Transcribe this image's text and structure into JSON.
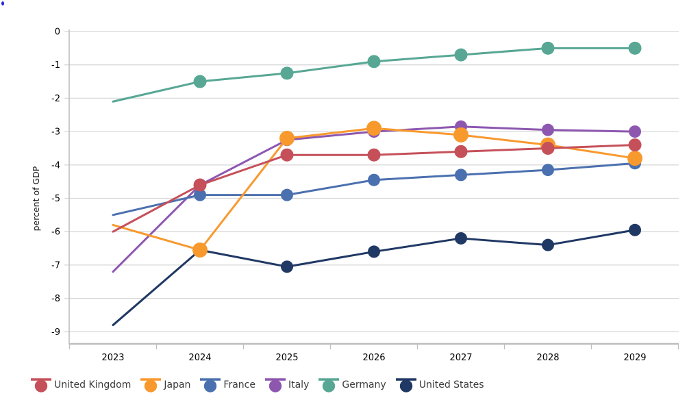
{
  "page": {
    "title": "",
    "artifact": {
      "name": "stray-blue-dot",
      "color": "#2222dd"
    }
  },
  "chart_data": {
    "type": "line",
    "title": "",
    "xlabel": "",
    "ylabel": "percent of GDP",
    "x_categories": [
      "2023",
      "2024",
      "2025",
      "2026",
      "2027",
      "2028",
      "2029"
    ],
    "y_ticks": [
      0,
      -1,
      -2,
      -3,
      -4,
      -5,
      -6,
      -7,
      -8,
      -9
    ],
    "ylim": [
      -9.4,
      0
    ],
    "grid": true,
    "legend_position": "bottom",
    "markers_on_first_point": false,
    "series": [
      {
        "name": "United Kingdom",
        "color": "#C5505A",
        "marker_radius": 9.5,
        "values": [
          -6.0,
          -4.6,
          -3.7,
          -3.7,
          -3.6,
          -3.5,
          -3.4
        ]
      },
      {
        "name": "Japan",
        "color": "#F8992E",
        "marker_radius": 11,
        "values": [
          -5.8,
          -6.55,
          -3.2,
          -2.9,
          -3.1,
          -3.4,
          -3.8
        ]
      },
      {
        "name": "France",
        "color": "#4B70AF",
        "marker_radius": 9,
        "values": [
          -5.5,
          -4.9,
          -4.9,
          -4.45,
          -4.3,
          -4.15,
          -3.95
        ]
      },
      {
        "name": "Italy",
        "color": "#8D57B0",
        "marker_radius": 9,
        "values": [
          -7.2,
          -4.6,
          -3.25,
          -3.0,
          -2.85,
          -2.95,
          -3.0
        ]
      },
      {
        "name": "Germany",
        "color": "#57A794",
        "marker_radius": 9.5,
        "values": [
          -2.1,
          -1.5,
          -1.25,
          -0.9,
          -0.7,
          -0.5,
          -0.5
        ]
      },
      {
        "name": "United States",
        "color": "#203864",
        "marker_radius": 9,
        "values": [
          -8.8,
          -6.55,
          -7.05,
          -6.6,
          -6.2,
          -6.4,
          -5.95
        ]
      }
    ],
    "draw_order": [
      "United States",
      "Italy",
      "France",
      "Germany",
      "Japan",
      "United Kingdom"
    ],
    "colors": {
      "gridline": "#D8D8D8",
      "axis": "#BEBEBE",
      "tick_text": "#000000",
      "legend_text": "#3a3a3a"
    }
  }
}
